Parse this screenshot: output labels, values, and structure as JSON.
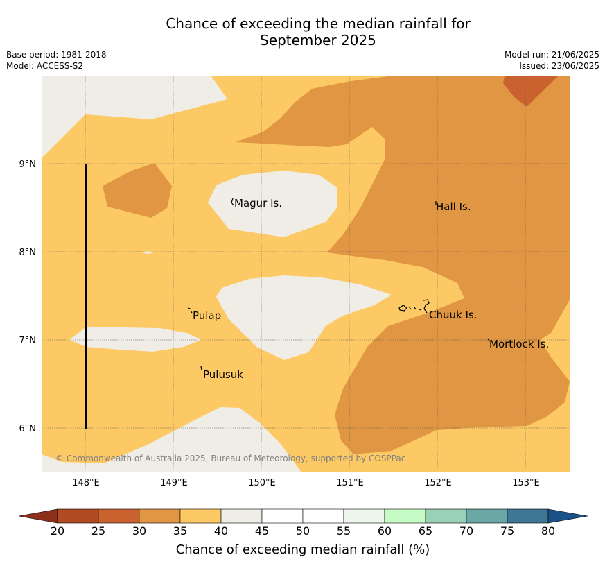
{
  "title_line1": "Chance of exceeding the median rainfall for",
  "title_line2": "September 2025",
  "meta_left": [
    "Base period: 1981-2018",
    "Model: ACCESS-S2"
  ],
  "meta_right": [
    "Model run: 21/06/2025",
    "Issued: 23/06/2025"
  ],
  "lat_labels": [
    "9°N",
    "8°N",
    "7°N",
    "6°N"
  ],
  "lon_labels": [
    "148°E",
    "149°E",
    "150°E",
    "151°E",
    "152°E",
    "153°E"
  ],
  "places": [
    "Magur Is.",
    "Hall Is.",
    "Pulap",
    "Chuuk Is.",
    "Mortlock Is.",
    "Pulusuk"
  ],
  "credit": "© Commonwealth of Australia 2025, Bureau of Meteorology, supported by COSPPac",
  "colorbar": {
    "title": "Chance of exceeding median rainfall (%)",
    "ticks": [
      "20",
      "25",
      "30",
      "35",
      "40",
      "45",
      "50",
      "55",
      "60",
      "65",
      "70",
      "75",
      "80"
    ],
    "colors": [
      "#b24a24",
      "#c9622f",
      "#e09642",
      "#fdc964",
      "#f0ede6",
      "#ffffff",
      "#ffffff",
      "#eef5ec",
      "#c7fbc5",
      "#99d1b7",
      "#6aa7a5",
      "#3e7795"
    ],
    "low_color": "#8c2f1b",
    "high_color": "#1a5186"
  },
  "map_colors": {
    "c30_35": "#e09642",
    "c35_40": "#fdc964",
    "c40_45": "#f0ede6",
    "c25_30": "#c9622f"
  }
}
